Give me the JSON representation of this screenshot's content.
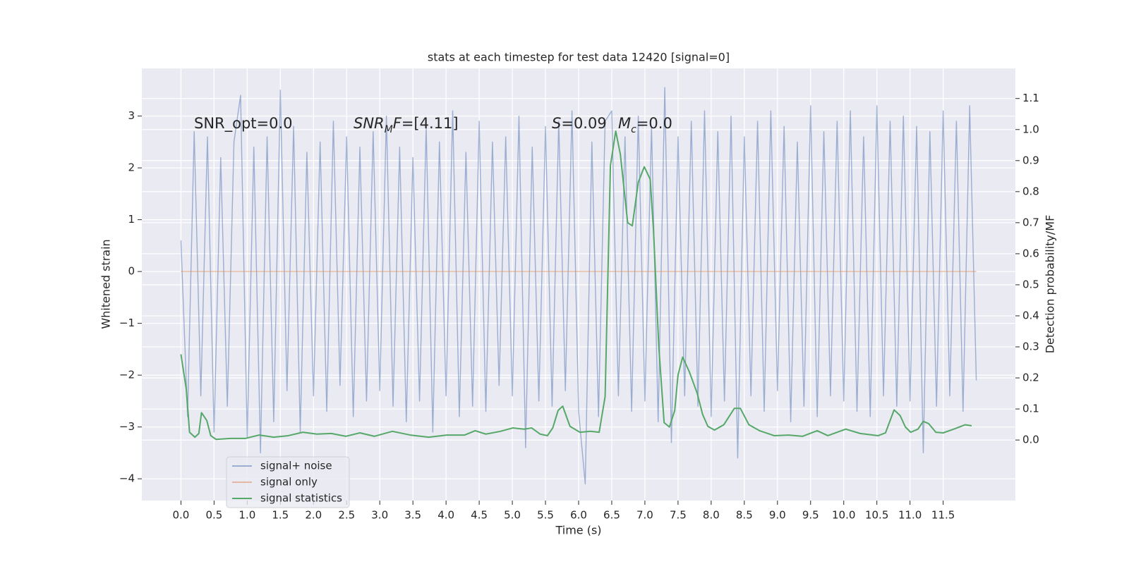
{
  "chart_data": {
    "type": "line",
    "title": "stats at each timestep for test data 12420 [signal=0]",
    "xlabel": "Time (s)",
    "ylabel": "Whitened strain",
    "y2label": "Detection probability/MF",
    "annotations": [
      {
        "parts": [
          "SNR_opt=0.0"
        ]
      },
      {
        "parts": [
          "SNR",
          "M",
          "F=[4.11]"
        ]
      },
      {
        "parts": [
          "S",
          "=0.09"
        ]
      },
      {
        "parts": [
          "M",
          "c",
          "=0.0"
        ]
      }
    ],
    "xlim": [
      -0.59,
      12.59
    ],
    "ylim": [
      -4.42,
      3.92
    ],
    "y2lim": [
      -0.195,
      1.197
    ],
    "xticks": [
      {
        "value": 0,
        "label": "0.0"
      },
      0.5,
      {
        "value": 1,
        "label": "1.0"
      },
      1.5,
      {
        "value": 2,
        "label": "2.0"
      },
      2.5,
      {
        "value": 3,
        "label": "3.0"
      },
      3.5,
      {
        "value": 4,
        "label": "4.0"
      },
      4.5,
      {
        "value": 5,
        "label": "5.0"
      },
      5.5,
      {
        "value": 6,
        "label": "6.0"
      },
      6.5,
      {
        "value": 7,
        "label": "7.0"
      },
      7.5,
      {
        "value": 8,
        "label": "8.0"
      },
      8.5,
      {
        "value": 9,
        "label": "9.0"
      },
      9.5,
      {
        "value": 10,
        "label": "10.0"
      },
      10.5,
      {
        "value": 11,
        "label": "11.0"
      },
      11.5
    ],
    "yticks": [
      {
        "value": -4,
        "label": "−4"
      },
      {
        "value": -3,
        "label": "−3"
      },
      {
        "value": -2,
        "label": "−2"
      },
      {
        "value": -1,
        "label": "−1"
      },
      0,
      1,
      2,
      3
    ],
    "y2ticks": [
      {
        "value": 0,
        "label": "0.0"
      },
      0.1,
      0.2,
      0.3,
      0.4,
      0.5,
      0.6,
      0.7,
      0.8,
      0.9,
      {
        "value": 1,
        "label": "1.0"
      },
      1.1
    ],
    "grid": true,
    "legend": "lower left",
    "series": [
      {
        "name": "signal+ noise",
        "color": "#4c72b0",
        "alpha": 0.5,
        "x": [
          0,
          0.1,
          0.2,
          0.3,
          0.4,
          0.5,
          0.6,
          0.7,
          0.8,
          0.9,
          1,
          1.1,
          1.2,
          1.3,
          1.4,
          1.5,
          1.6,
          1.7,
          1.8,
          1.9,
          2,
          2.1,
          2.2,
          2.3,
          2.4,
          2.5,
          2.6,
          2.7,
          2.8,
          2.9,
          3,
          3.1,
          3.2,
          3.3,
          3.4,
          3.5,
          3.6,
          3.7,
          3.8,
          3.9,
          4,
          4.1,
          4.2,
          4.3,
          4.4,
          4.5,
          4.6,
          4.7,
          4.8,
          4.9,
          5,
          5.1,
          5.2,
          5.3,
          5.4,
          5.5,
          5.6,
          5.7,
          5.8,
          5.9,
          6,
          6.1,
          6.2,
          6.3,
          6.4,
          6.5,
          6.6,
          6.7,
          6.8,
          6.9,
          7,
          7.1,
          7.2,
          7.3,
          7.4,
          7.5,
          7.6,
          7.7,
          7.8,
          7.9,
          8,
          8.1,
          8.2,
          8.3,
          8.4,
          8.5,
          8.6,
          8.7,
          8.8,
          8.9,
          9,
          9.1,
          9.2,
          9.3,
          9.4,
          9.5,
          9.6,
          9.7,
          9.8,
          9.9,
          10,
          10.1,
          10.2,
          10.3,
          10.4,
          10.5,
          10.6,
          10.7,
          10.8,
          10.9,
          11,
          11.1,
          11.2,
          11.3,
          11.4,
          11.5,
          11.6,
          11.7,
          11.8,
          11.9,
          12
        ],
        "values": [
          0.6,
          -2.8,
          2.7,
          -2.4,
          2.6,
          -3.1,
          2.2,
          -2.6,
          2.5,
          3.4,
          -3.2,
          2.4,
          -3.5,
          2.6,
          -2.9,
          3.5,
          -2.3,
          2.8,
          -3.1,
          2.3,
          -2.4,
          2.5,
          -2.7,
          2.9,
          -2.2,
          2.6,
          -2.8,
          2.4,
          -2.5,
          2.7,
          -2.3,
          3.0,
          -2.6,
          2.4,
          -2.9,
          2.2,
          -2.5,
          2.8,
          -3.1,
          2.5,
          -2.4,
          3.1,
          -2.8,
          2.3,
          -2.6,
          2.9,
          -2.7,
          2.5,
          -2.2,
          2.6,
          -2.4,
          3.0,
          -3.4,
          2.4,
          -2.5,
          2.8,
          -2.6,
          2.9,
          -2.3,
          3.1,
          -2.7,
          -4.1,
          2.5,
          -2.8,
          2.9,
          3.1,
          -2.4,
          2.6,
          -2.7,
          3.0,
          -2.5,
          2.8,
          -2.9,
          3.55,
          -3.3,
          2.6,
          -2.4,
          2.9,
          -2.6,
          3.1,
          -2.8,
          2.7,
          -2.5,
          3.0,
          -3.6,
          2.6,
          -2.4,
          2.9,
          -2.7,
          3.1,
          -2.3,
          2.8,
          -2.9,
          2.5,
          -2.6,
          3.2,
          -2.8,
          2.7,
          -2.4,
          2.9,
          -2.5,
          3.1,
          -2.7,
          2.6,
          -2.8,
          3.2,
          -2.4,
          2.9,
          -2.6,
          3.0,
          -2.5,
          2.8,
          -3.5,
          2.7,
          -2.6,
          3.1,
          -2.4,
          2.9,
          -2.7,
          3.2,
          -2.1
        ]
      },
      {
        "name": "signal only",
        "color": "#dd8452",
        "alpha": 0.5,
        "x": [
          0,
          12
        ],
        "values": [
          0,
          0
        ]
      },
      {
        "name": "signal statistics",
        "color": "#55a868",
        "axis": "y2",
        "x": [
          0,
          0.08,
          0.13,
          0.21,
          0.27,
          0.31,
          0.39,
          0.45,
          0.53,
          0.75,
          0.97,
          1.18,
          1.4,
          1.62,
          1.84,
          2.05,
          2.27,
          2.49,
          2.7,
          2.92,
          3.19,
          3.46,
          3.74,
          4.01,
          4.28,
          4.44,
          4.6,
          4.82,
          5.01,
          5.18,
          5.29,
          5.42,
          5.53,
          5.61,
          5.69,
          5.76,
          5.87,
          6.02,
          6.18,
          6.31,
          6.4,
          6.48,
          6.56,
          6.63,
          6.74,
          6.81,
          6.9,
          6.99,
          7.08,
          7.13,
          7.21,
          7.29,
          7.37,
          7.45,
          7.5,
          7.57,
          7.67,
          7.79,
          7.87,
          7.95,
          8.05,
          8.19,
          8.35,
          8.44,
          8.57,
          8.73,
          8.95,
          9.17,
          9.38,
          9.6,
          9.76,
          10.03,
          10.25,
          10.52,
          10.63,
          10.76,
          10.85,
          10.93,
          11.01,
          11.12,
          11.2,
          11.28,
          11.39,
          11.5,
          11.66,
          11.83,
          11.93
        ],
        "values": [
          0.276,
          0.165,
          0.025,
          0.009,
          0.021,
          0.088,
          0.063,
          0.014,
          0.002,
          0.005,
          0.005,
          0.016,
          0.009,
          0.014,
          0.025,
          0.019,
          0.021,
          0.012,
          0.023,
          0.012,
          0.028,
          0.016,
          0.009,
          0.016,
          0.016,
          0.03,
          0.019,
          0.028,
          0.039,
          0.035,
          0.039,
          0.019,
          0.014,
          0.039,
          0.095,
          0.109,
          0.044,
          0.025,
          0.028,
          0.025,
          0.14,
          0.884,
          0.995,
          0.92,
          0.7,
          0.69,
          0.83,
          0.88,
          0.84,
          0.675,
          0.3,
          0.056,
          0.042,
          0.095,
          0.21,
          0.267,
          0.22,
          0.15,
          0.083,
          0.044,
          0.032,
          0.049,
          0.102,
          0.102,
          0.049,
          0.03,
          0.014,
          0.016,
          0.012,
          0.03,
          0.014,
          0.035,
          0.021,
          0.014,
          0.023,
          0.097,
          0.079,
          0.042,
          0.025,
          0.035,
          0.06,
          0.053,
          0.025,
          0.023,
          0.035,
          0.049,
          0.046
        ]
      }
    ]
  }
}
